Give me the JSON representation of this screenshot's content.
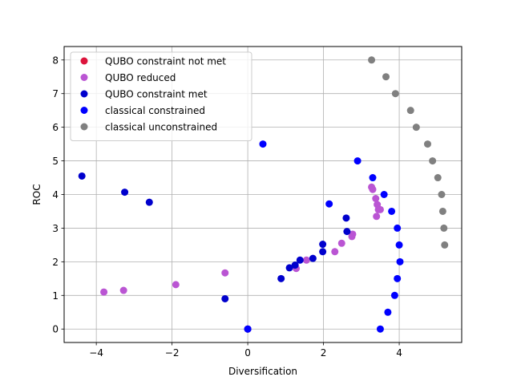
{
  "chart_data": {
    "type": "scatter",
    "title": "",
    "xlabel": "Diversification",
    "ylabel": "ROC",
    "xlim": [
      -4.85,
      5.65
    ],
    "ylim": [
      -0.4,
      8.4
    ],
    "xticks": [
      -4,
      -2,
      0,
      2,
      4
    ],
    "yticks": [
      0,
      1,
      2,
      3,
      4,
      5,
      6,
      7,
      8
    ],
    "grid": true,
    "legend_position": "upper-left",
    "series": [
      {
        "name": "QUBO constraint not met",
        "color": "#dc143c",
        "points": [
          [
            0,
            0
          ]
        ]
      },
      {
        "name": "QUBO reduced",
        "color": "#ba55d3",
        "points": [
          [
            0,
            0
          ],
          [
            -3.8,
            1.1
          ],
          [
            -3.28,
            1.15
          ],
          [
            -1.9,
            1.32
          ],
          [
            -0.6,
            1.67
          ],
          [
            1.28,
            1.8
          ],
          [
            1.55,
            2.05
          ],
          [
            2.3,
            2.3
          ],
          [
            2.48,
            2.55
          ],
          [
            2.75,
            2.75
          ],
          [
            2.77,
            2.82
          ],
          [
            3.27,
            4.22
          ],
          [
            3.3,
            4.15
          ],
          [
            3.38,
            3.88
          ],
          [
            3.42,
            3.7
          ],
          [
            3.45,
            3.55
          ],
          [
            3.5,
            3.55
          ],
          [
            3.4,
            3.35
          ]
        ]
      },
      {
        "name": "QUBO constraint met",
        "color": "#0000cd",
        "points": [
          [
            0,
            0
          ],
          [
            -4.38,
            4.55
          ],
          [
            -3.25,
            4.07
          ],
          [
            -2.6,
            3.77
          ],
          [
            -0.6,
            0.9
          ],
          [
            0.88,
            1.5
          ],
          [
            1.1,
            1.82
          ],
          [
            1.25,
            1.9
          ],
          [
            1.38,
            2.05
          ],
          [
            1.72,
            2.1
          ],
          [
            1.98,
            2.3
          ],
          [
            1.98,
            2.52
          ],
          [
            2.62,
            2.9
          ],
          [
            2.6,
            3.3
          ]
        ]
      },
      {
        "name": "classical constrained",
        "color": "#0000ff",
        "points": [
          [
            0,
            0
          ],
          [
            0.4,
            5.5
          ],
          [
            2.15,
            3.72
          ],
          [
            2.9,
            5.0
          ],
          [
            3.3,
            4.5
          ],
          [
            3.6,
            4.0
          ],
          [
            3.8,
            3.5
          ],
          [
            3.95,
            3.0
          ],
          [
            4.0,
            2.5
          ],
          [
            4.02,
            2.0
          ],
          [
            3.95,
            1.5
          ],
          [
            3.88,
            1.0
          ],
          [
            3.7,
            0.5
          ],
          [
            3.5,
            0.0
          ]
        ]
      },
      {
        "name": "classical unconstrained",
        "color": "#808080",
        "points": [
          [
            3.27,
            8.0
          ],
          [
            3.65,
            7.5
          ],
          [
            3.9,
            7.0
          ],
          [
            4.3,
            6.5
          ],
          [
            4.45,
            6.0
          ],
          [
            4.75,
            5.5
          ],
          [
            4.88,
            5.0
          ],
          [
            5.02,
            4.5
          ],
          [
            5.12,
            4.0
          ],
          [
            5.15,
            3.5
          ],
          [
            5.18,
            3.0
          ],
          [
            5.2,
            2.5
          ]
        ]
      }
    ]
  }
}
